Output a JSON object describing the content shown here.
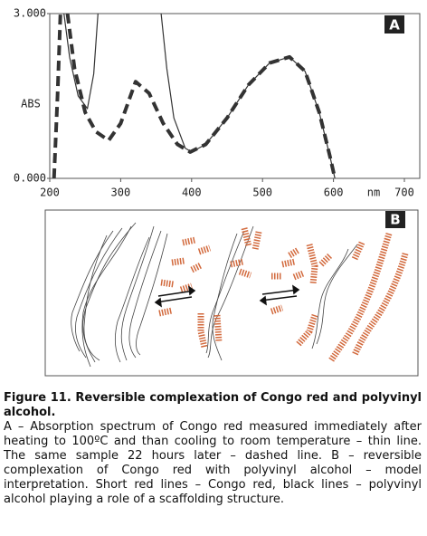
{
  "chart_data": {
    "type": "line",
    "panel_label": "A",
    "y_label": "ABS",
    "x_label": "nm",
    "xlim": [
      200,
      700
    ],
    "ylim": [
      0,
      3
    ],
    "xticks": [
      200,
      300,
      400,
      500,
      600,
      700
    ],
    "yticks": [
      {
        "value": 0,
        "label": "0.000"
      },
      {
        "value": 3,
        "label": "3.000"
      }
    ],
    "series": [
      {
        "color": "#333333",
        "style": "solid",
        "x": [
          220,
          228,
          240,
          253,
          262,
          268,
          300,
          357,
          365,
          375,
          391,
          400,
          420,
          450,
          480,
          510,
          538,
          560,
          580,
          595,
          602
        ],
        "values": [
          3,
          2.2,
          1.5,
          1.27,
          1.9,
          3,
          null,
          3,
          2.0,
          1.1,
          0.55,
          0.48,
          0.62,
          1.1,
          1.7,
          2.1,
          2.21,
          1.95,
          1.2,
          0.4,
          0
        ]
      },
      {
        "color": "#333333",
        "style": "dashed",
        "x": [
          206,
          211,
          215,
          220,
          225,
          235,
          250,
          265,
          283,
          300,
          321,
          340,
          360,
          380,
          398,
          420,
          450,
          480,
          510,
          538,
          560,
          580,
          595,
          602
        ],
        "values": [
          0,
          1.5,
          3,
          null,
          3,
          2.0,
          1.2,
          0.85,
          0.69,
          1.0,
          1.76,
          1.55,
          1.0,
          0.62,
          0.48,
          0.62,
          1.1,
          1.7,
          2.1,
          2.21,
          1.95,
          1.2,
          0.4,
          0
        ]
      }
    ]
  },
  "diagram": {
    "panel_label": "B"
  },
  "caption": {
    "title": "Figure 11. Reversible complexation of Congo red and polyvinyl alcohol.",
    "body": "A – Absorption spectrum of Congo red measured immediately after heating to 100ºC and than cooling to room temperature – thin line. The same sample 22 hours later – dashed line. B – reversible complexation of Congo red with polyvinyl alcohol – model interpretation. Short red lines – Congo red, black lines – polyvinyl alcohol playing a role of a scaffolding structure."
  }
}
